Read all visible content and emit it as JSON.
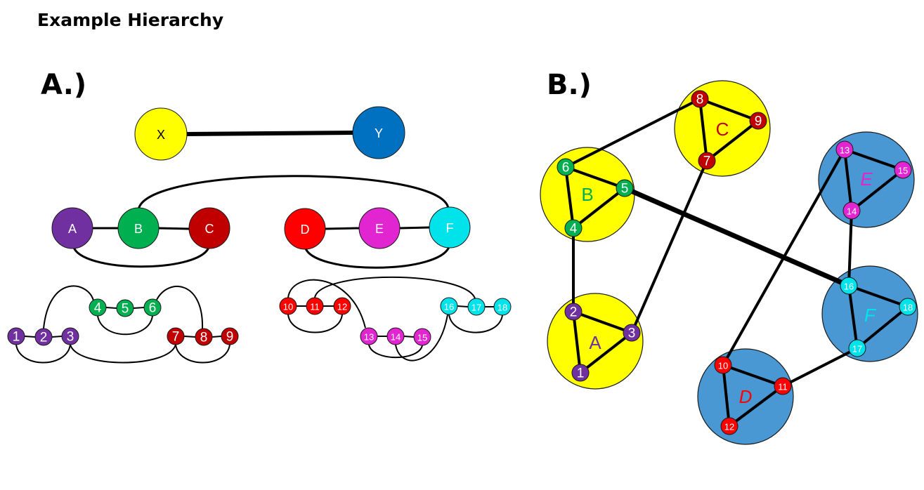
{
  "title": "Example Hierarchy",
  "panel_a_label": "A.)",
  "panel_b_label": "B.)",
  "colors": {
    "yellow": "#ffff00",
    "blue": "#0070c0",
    "lightblue": "#4a98d3",
    "purple": "#7030a0",
    "green": "#00b050",
    "darkred": "#c00000",
    "red": "#ff0000",
    "magenta": "#e025d1",
    "cyan": "#00e3ea",
    "line": "#000000"
  },
  "panel_a": {
    "top_level": [
      {
        "id": "X",
        "label": "X",
        "color": "yellow"
      },
      {
        "id": "Y",
        "label": "Y",
        "color": "blue"
      }
    ],
    "mid_level": [
      {
        "id": "A",
        "label": "A",
        "color": "purple"
      },
      {
        "id": "B",
        "label": "B",
        "color": "green"
      },
      {
        "id": "C",
        "label": "C",
        "color": "darkred"
      },
      {
        "id": "D",
        "label": "D",
        "color": "red"
      },
      {
        "id": "E",
        "label": "E",
        "color": "magenta"
      },
      {
        "id": "F",
        "label": "F",
        "color": "cyan"
      }
    ],
    "leaf_level": [
      {
        "id": "1",
        "label": "1",
        "color": "purple"
      },
      {
        "id": "2",
        "label": "2",
        "color": "purple"
      },
      {
        "id": "3",
        "label": "3",
        "color": "purple"
      },
      {
        "id": "4",
        "label": "4",
        "color": "green"
      },
      {
        "id": "5",
        "label": "5",
        "color": "green"
      },
      {
        "id": "6",
        "label": "6",
        "color": "green"
      },
      {
        "id": "7",
        "label": "7",
        "color": "darkred"
      },
      {
        "id": "8",
        "label": "8",
        "color": "darkred"
      },
      {
        "id": "9",
        "label": "9",
        "color": "darkred"
      },
      {
        "id": "10",
        "label": "10",
        "color": "red"
      },
      {
        "id": "11",
        "label": "11",
        "color": "red"
      },
      {
        "id": "12",
        "label": "12",
        "color": "red"
      },
      {
        "id": "13",
        "label": "13",
        "color": "magenta"
      },
      {
        "id": "14",
        "label": "14",
        "color": "magenta"
      },
      {
        "id": "15",
        "label": "15",
        "color": "magenta"
      },
      {
        "id": "16",
        "label": "16",
        "color": "cyan"
      },
      {
        "id": "17",
        "label": "17",
        "color": "cyan"
      },
      {
        "id": "18",
        "label": "18",
        "color": "cyan"
      }
    ]
  },
  "panel_b": {
    "groups": [
      {
        "id": "A",
        "label": "A",
        "fill": "yellow",
        "label_color": "purple"
      },
      {
        "id": "B",
        "label": "B",
        "fill": "yellow",
        "label_color": "green"
      },
      {
        "id": "C",
        "label": "C",
        "fill": "yellow",
        "label_color": "darkred"
      },
      {
        "id": "D",
        "label": "D",
        "fill": "lightblue",
        "label_color": "red"
      },
      {
        "id": "E",
        "label": "E",
        "fill": "lightblue",
        "label_color": "magenta"
      },
      {
        "id": "F",
        "label": "F",
        "fill": "lightblue",
        "label_color": "cyan"
      }
    ]
  }
}
